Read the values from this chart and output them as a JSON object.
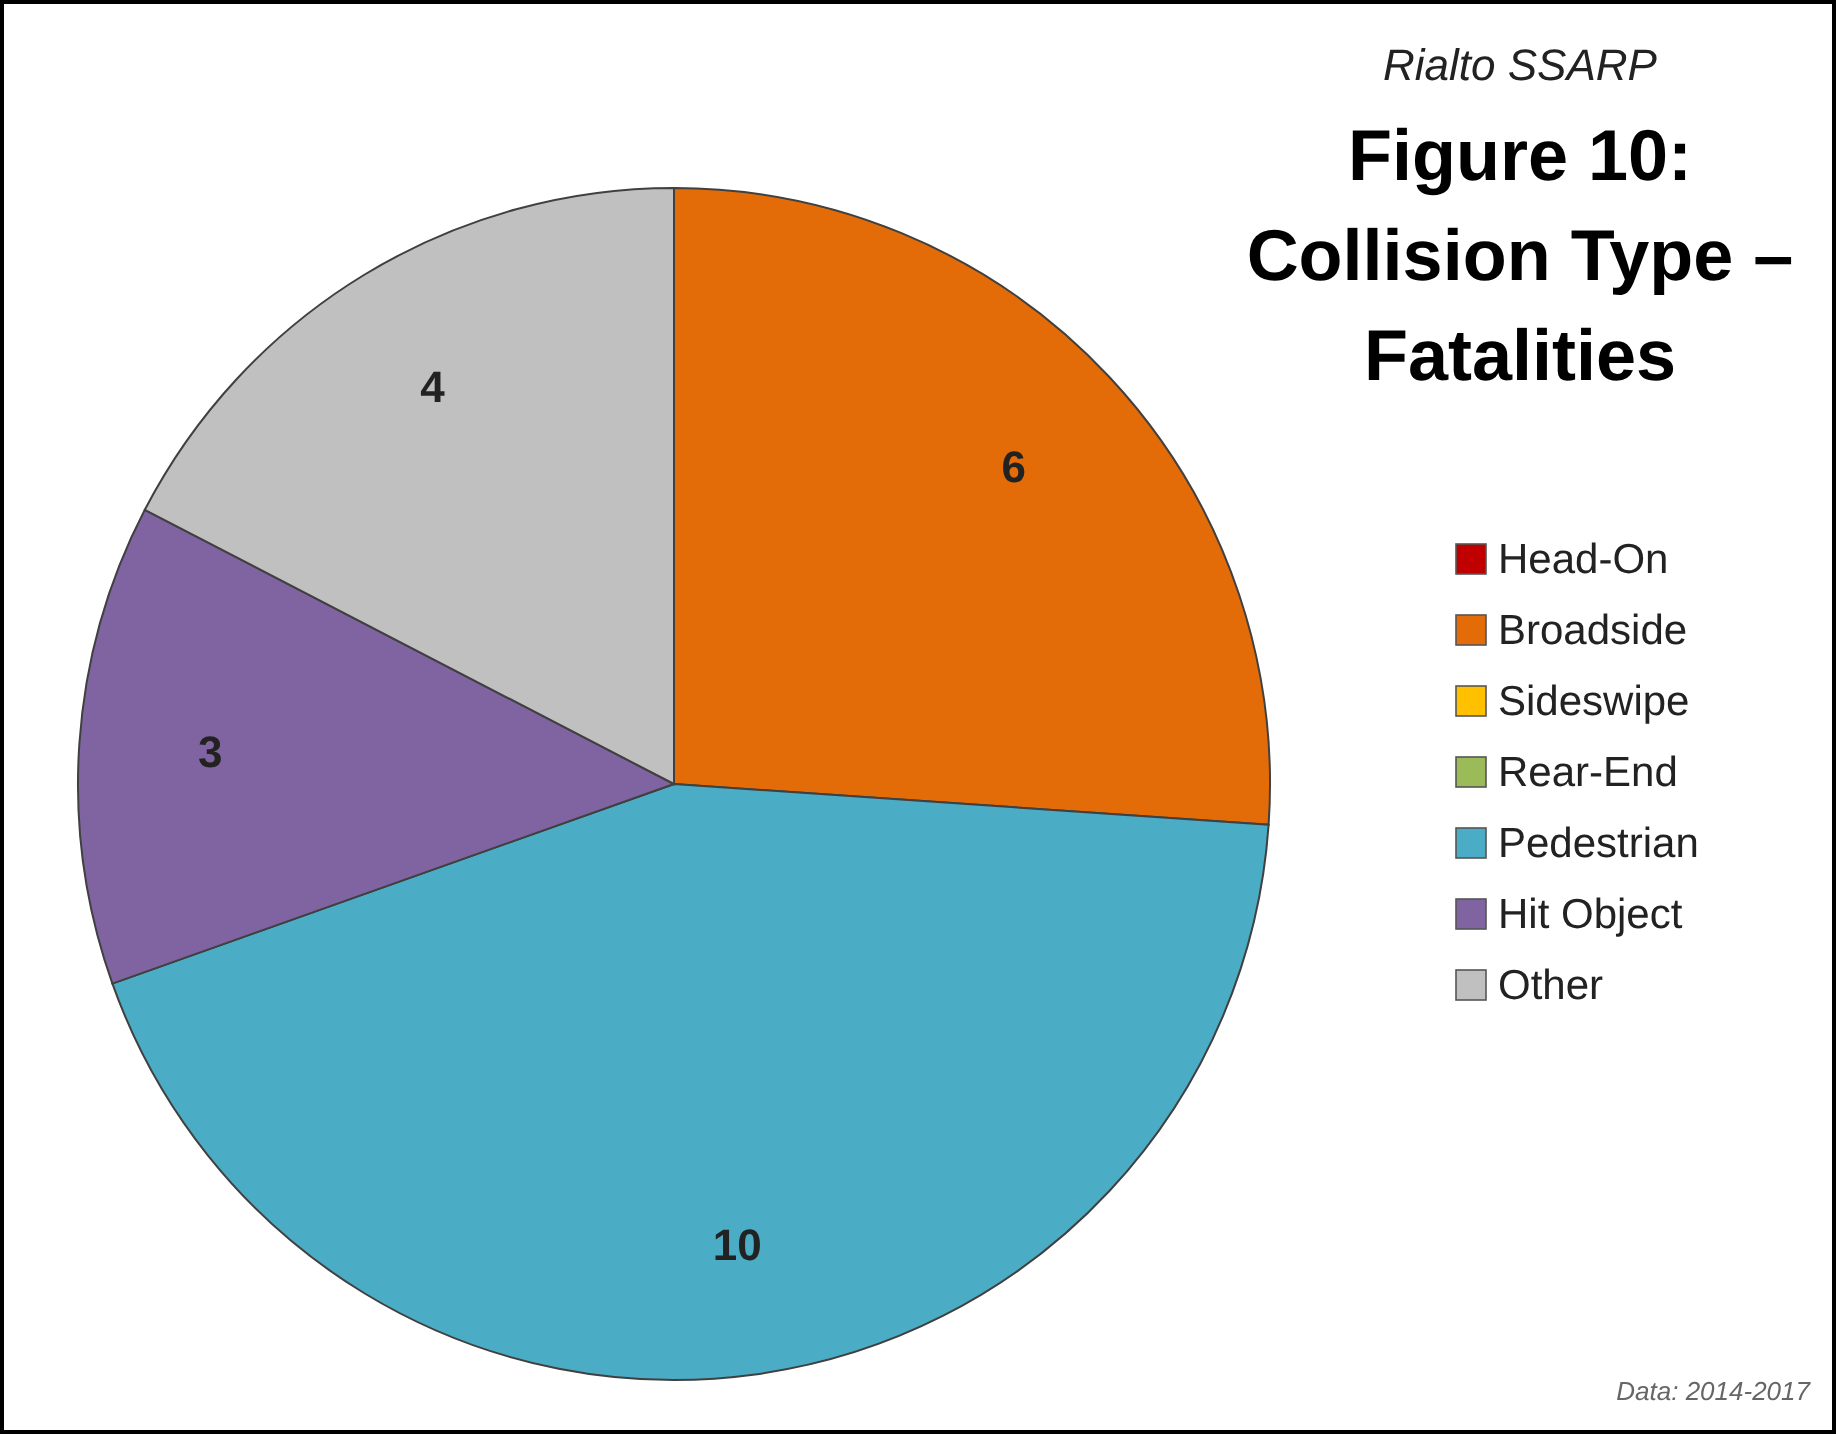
{
  "chart_data": {
    "type": "pie",
    "subtitle": "Rialto SSARP",
    "title": "Figure 10: Collision Type – Fatalities",
    "categories": [
      "Head-On",
      "Broadside",
      "Sideswipe",
      "Rear-End",
      "Pedestrian",
      "Hit Object",
      "Other"
    ],
    "values": [
      0,
      6,
      0,
      0,
      10,
      3,
      4
    ],
    "colors": [
      "#c00000",
      "#e36c09",
      "#ffc000",
      "#9bbb59",
      "#4bacc6",
      "#8064a2",
      "#c0c0c0"
    ],
    "value_labels": [
      null,
      "6",
      null,
      null,
      "10",
      "3",
      "4"
    ],
    "legend": "right",
    "annotations": [
      "Data: 2014-2017"
    ]
  }
}
